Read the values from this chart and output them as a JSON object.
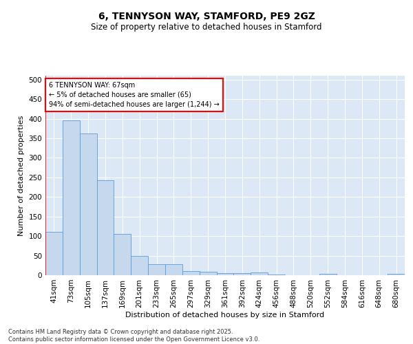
{
  "title_line1": "6, TENNYSON WAY, STAMFORD, PE9 2GZ",
  "title_line2": "Size of property relative to detached houses in Stamford",
  "xlabel": "Distribution of detached houses by size in Stamford",
  "ylabel": "Number of detached properties",
  "categories": [
    "41sqm",
    "73sqm",
    "105sqm",
    "137sqm",
    "169sqm",
    "201sqm",
    "233sqm",
    "265sqm",
    "297sqm",
    "329sqm",
    "361sqm",
    "392sqm",
    "424sqm",
    "456sqm",
    "488sqm",
    "520sqm",
    "552sqm",
    "584sqm",
    "616sqm",
    "648sqm",
    "680sqm"
  ],
  "values": [
    110,
    395,
    362,
    243,
    105,
    50,
    28,
    28,
    10,
    8,
    6,
    6,
    7,
    1,
    0,
    0,
    3,
    0,
    0,
    0,
    4
  ],
  "bar_color": "#c5d8ed",
  "bar_edge_color": "#5b9bd5",
  "annotation_text": "6 TENNYSON WAY: 67sqm\n← 5% of detached houses are smaller (65)\n94% of semi-detached houses are larger (1,244) →",
  "ylim": [
    0,
    510
  ],
  "yticks": [
    0,
    50,
    100,
    150,
    200,
    250,
    300,
    350,
    400,
    450,
    500
  ],
  "background_color": "#dce8f5",
  "footer_text": "Contains HM Land Registry data © Crown copyright and database right 2025.\nContains public sector information licensed under the Open Government Licence v3.0.",
  "title_fontsize": 10,
  "subtitle_fontsize": 8.5,
  "xlabel_fontsize": 8,
  "ylabel_fontsize": 8,
  "tick_fontsize": 7.5,
  "annotation_fontsize": 7,
  "footer_fontsize": 6
}
